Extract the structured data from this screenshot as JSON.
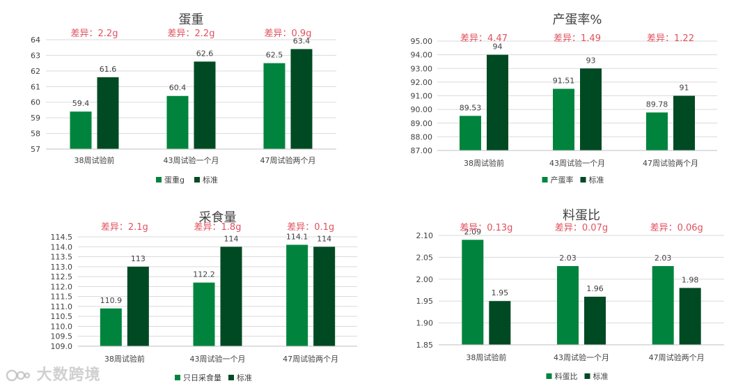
{
  "chart_data": [
    {
      "type": "bar",
      "title": "蛋重",
      "categories": [
        "38周试验前",
        "43周试验一个月",
        "47周试验两个月"
      ],
      "series": [
        {
          "name": "蛋重g",
          "values": [
            59.4,
            60.4,
            62.5
          ],
          "labels": [
            "59.4",
            "60.4",
            "62.5"
          ]
        },
        {
          "name": "标准",
          "values": [
            61.6,
            62.6,
            63.4
          ],
          "labels": [
            "61.6",
            "62.6",
            "63.4"
          ]
        }
      ],
      "annotations": [
        "差异：2.2g",
        "差异：2.2g",
        "差异：0.9g"
      ],
      "ylim": [
        57,
        64
      ],
      "yticks": [
        "57",
        "58",
        "59",
        "60",
        "61",
        "62",
        "63",
        "64"
      ],
      "grid": true,
      "legend": "bottom"
    },
    {
      "type": "bar",
      "title": "产蛋率%",
      "categories": [
        "38周试验前",
        "43周试验一个月",
        "47周试验两个月"
      ],
      "series": [
        {
          "name": "产蛋率",
          "values": [
            89.53,
            91.51,
            89.78
          ],
          "labels": [
            "89.53",
            "91.51",
            "89.78"
          ]
        },
        {
          "name": "标准",
          "values": [
            94,
            93,
            91
          ],
          "labels": [
            "94",
            "93",
            "91"
          ]
        }
      ],
      "annotations": [
        "差异：4.47",
        "差异：1.49",
        "差异：1.22"
      ],
      "ylim": [
        87,
        95
      ],
      "yticks": [
        "87.00",
        "88.00",
        "89.00",
        "90.00",
        "91.00",
        "92.00",
        "93.00",
        "94.00",
        "95.00"
      ],
      "grid": true,
      "legend": "bottom"
    },
    {
      "type": "bar",
      "title": "采食量",
      "categories": [
        "38周试验前",
        "43周试验一个月",
        "47周试验两个月"
      ],
      "series": [
        {
          "name": "只日采食量",
          "values": [
            110.9,
            112.2,
            114.1
          ],
          "labels": [
            "110.9",
            "112.2",
            "114.1"
          ]
        },
        {
          "name": "标准",
          "values": [
            113,
            114,
            114
          ],
          "labels": [
            "113",
            "114",
            "114"
          ]
        }
      ],
      "annotations": [
        "差异：2.1g",
        "差异：1.8g",
        "差异：0.1g"
      ],
      "ylim": [
        109,
        114.5
      ],
      "yticks": [
        "109.0",
        "109.5",
        "110.0",
        "110.5",
        "111.0",
        "111.5",
        "112.0",
        "112.5",
        "113.0",
        "113.5",
        "114.0",
        "114.5"
      ],
      "grid": true,
      "legend": "bottom"
    },
    {
      "type": "bar",
      "title": "料蛋比",
      "categories": [
        "38周试验前",
        "43周试验一个月",
        "47周试验两个月"
      ],
      "series": [
        {
          "name": "料蛋比",
          "values": [
            2.09,
            2.03,
            2.03
          ],
          "labels": [
            "2.09",
            "2.03",
            "2.03"
          ]
        },
        {
          "name": "标准",
          "values": [
            1.95,
            1.96,
            1.98
          ],
          "labels": [
            "1.95",
            "1.96",
            "1.98"
          ]
        }
      ],
      "annotations": [
        "差异：0.13g",
        "差异：0.07g",
        "差异：0.06g"
      ],
      "ylim": [
        1.85,
        2.1
      ],
      "yticks": [
        "1.85",
        "1.90",
        "1.95",
        "2.00",
        "2.05",
        "2.10"
      ],
      "grid": true,
      "legend": "bottom"
    }
  ],
  "colors": {
    "series1": "#00843d",
    "series2": "#004a23",
    "annotation": "#e0505e",
    "grid": "#d9d9d9",
    "text": "#404040"
  },
  "watermark": "大数跨境"
}
